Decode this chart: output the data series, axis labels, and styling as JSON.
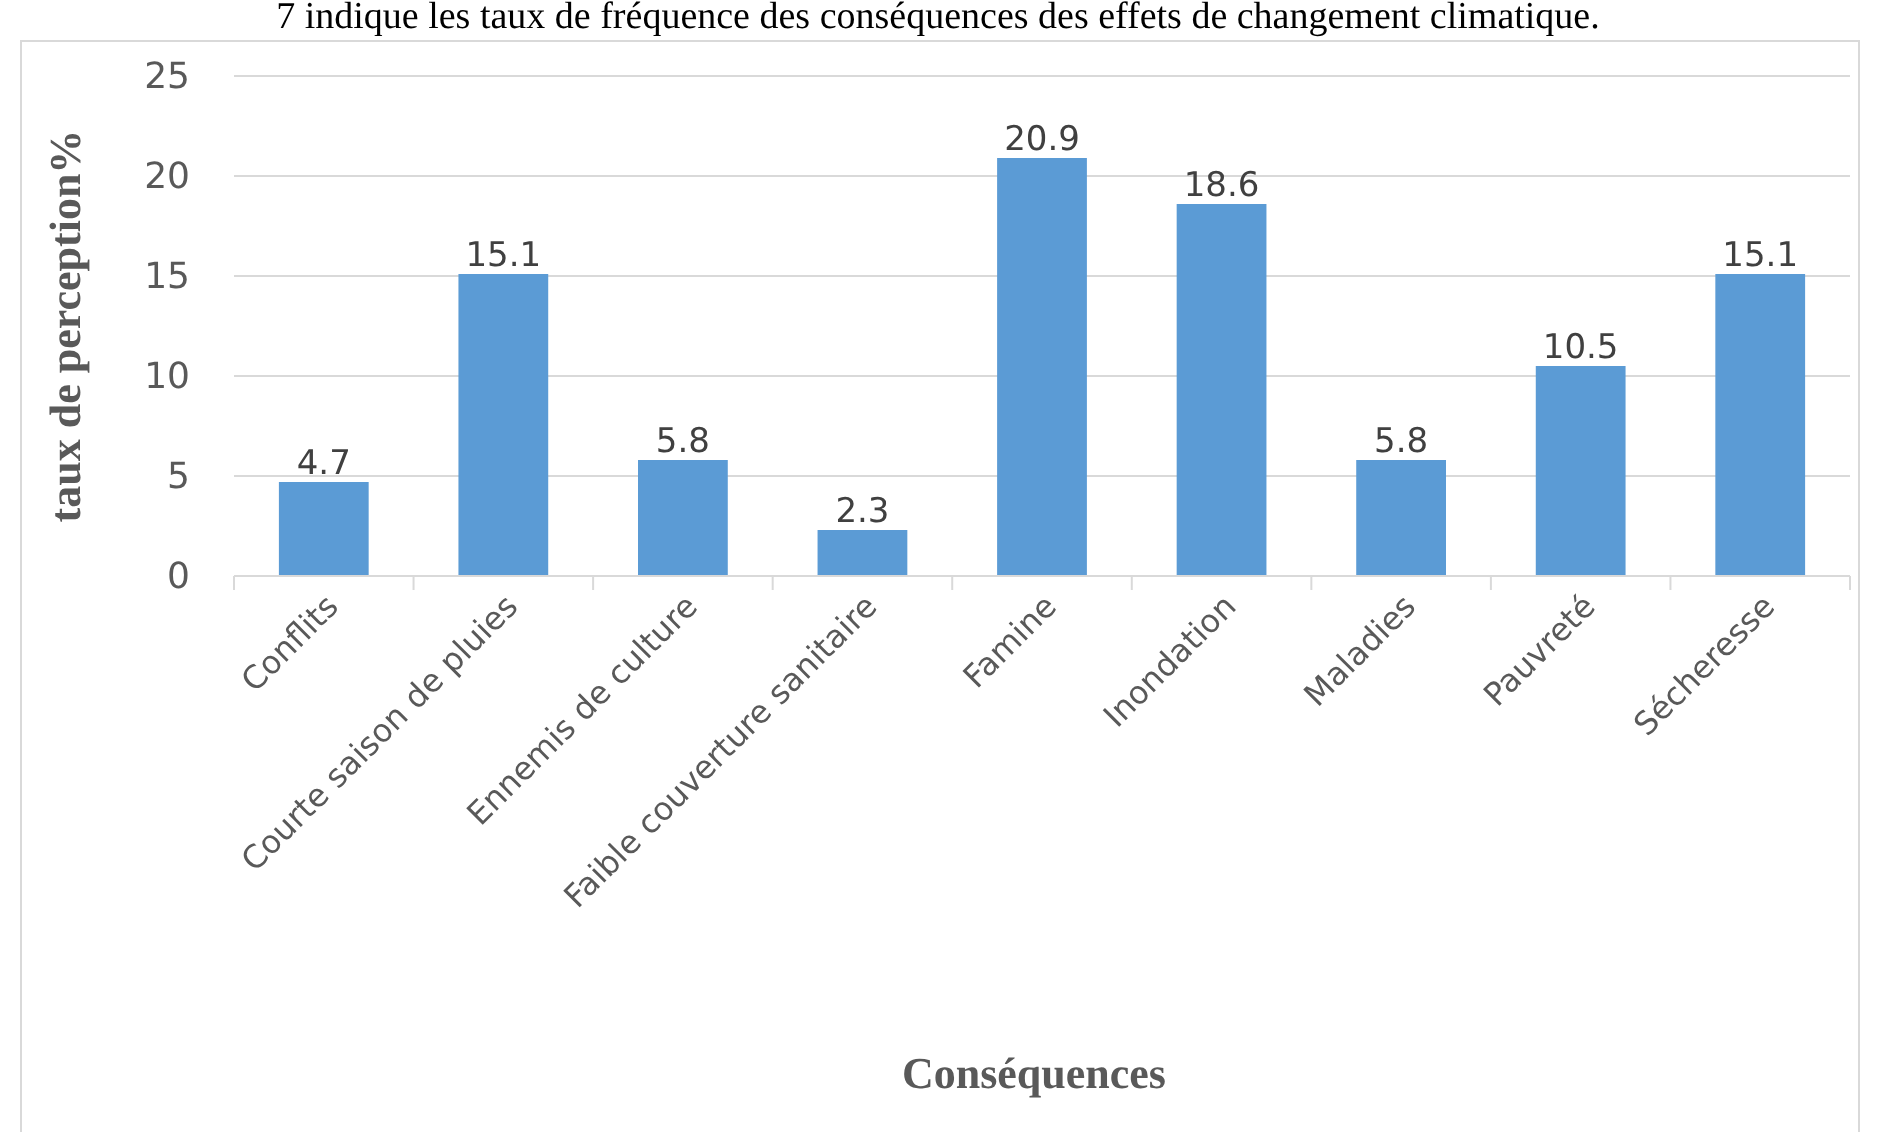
{
  "chart_data": {
    "type": "bar",
    "xlabel": "Conséquences",
    "ylabel": "taux de perception%",
    "annotations": [
      "7 indique les taux de fréquence des conséquences des effets de changement climatique."
    ],
    "categories": [
      "Conflits",
      "Courte saison de pluies",
      "Ennemis de culture",
      "Faible couverture sanitaire",
      "Famine",
      "Inondation",
      "Maladies",
      "Pauvreté",
      "Sécheresse"
    ],
    "values": [
      4.7,
      15.1,
      5.8,
      2.3,
      20.9,
      18.6,
      5.8,
      10.5,
      15.1
    ],
    "color": "#5b9bd5",
    "ylim": [
      0,
      25
    ],
    "yticks": [
      0,
      5,
      10,
      15,
      20,
      25
    ],
    "grid": "y",
    "data_labels": true
  }
}
